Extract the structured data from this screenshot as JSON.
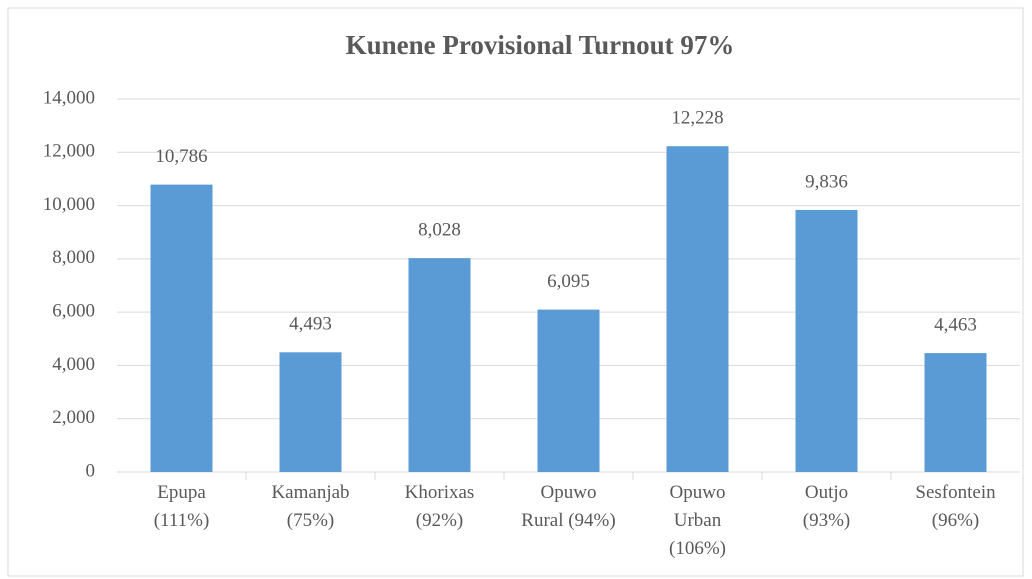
{
  "chart_data": {
    "type": "bar",
    "title": "Kunene Provisional Turnout 97%",
    "categories": [
      "Epupa\n(111%)",
      "Kamanjab\n(75%)",
      "Khorixas\n(92%)",
      "Opuwo\nRural (94%)",
      "Opuwo\nUrban\n(106%)",
      "Outjo\n(93%)",
      "Sesfontein\n(96%)"
    ],
    "values": [
      10786,
      4493,
      8028,
      6095,
      12228,
      9836,
      4463
    ],
    "value_labels": [
      "10,786",
      "4,493",
      "8,028",
      "6,095",
      "12,228",
      "9,836",
      "4,463"
    ],
    "color": "#5b9bd5",
    "ylim": [
      0,
      14000
    ],
    "yticks": [
      0,
      {
        "value": 2000,
        "label": "2,000"
      },
      {
        "value": 4000,
        "label": "4,000"
      },
      {
        "value": 6000,
        "label": "6,000"
      },
      {
        "value": 8000,
        "label": "8,000"
      },
      {
        "value": 10000,
        "label": "10,000"
      },
      {
        "value": 12000,
        "label": "12,000"
      },
      {
        "value": 14000,
        "label": "14,000"
      }
    ],
    "grid": true
  }
}
